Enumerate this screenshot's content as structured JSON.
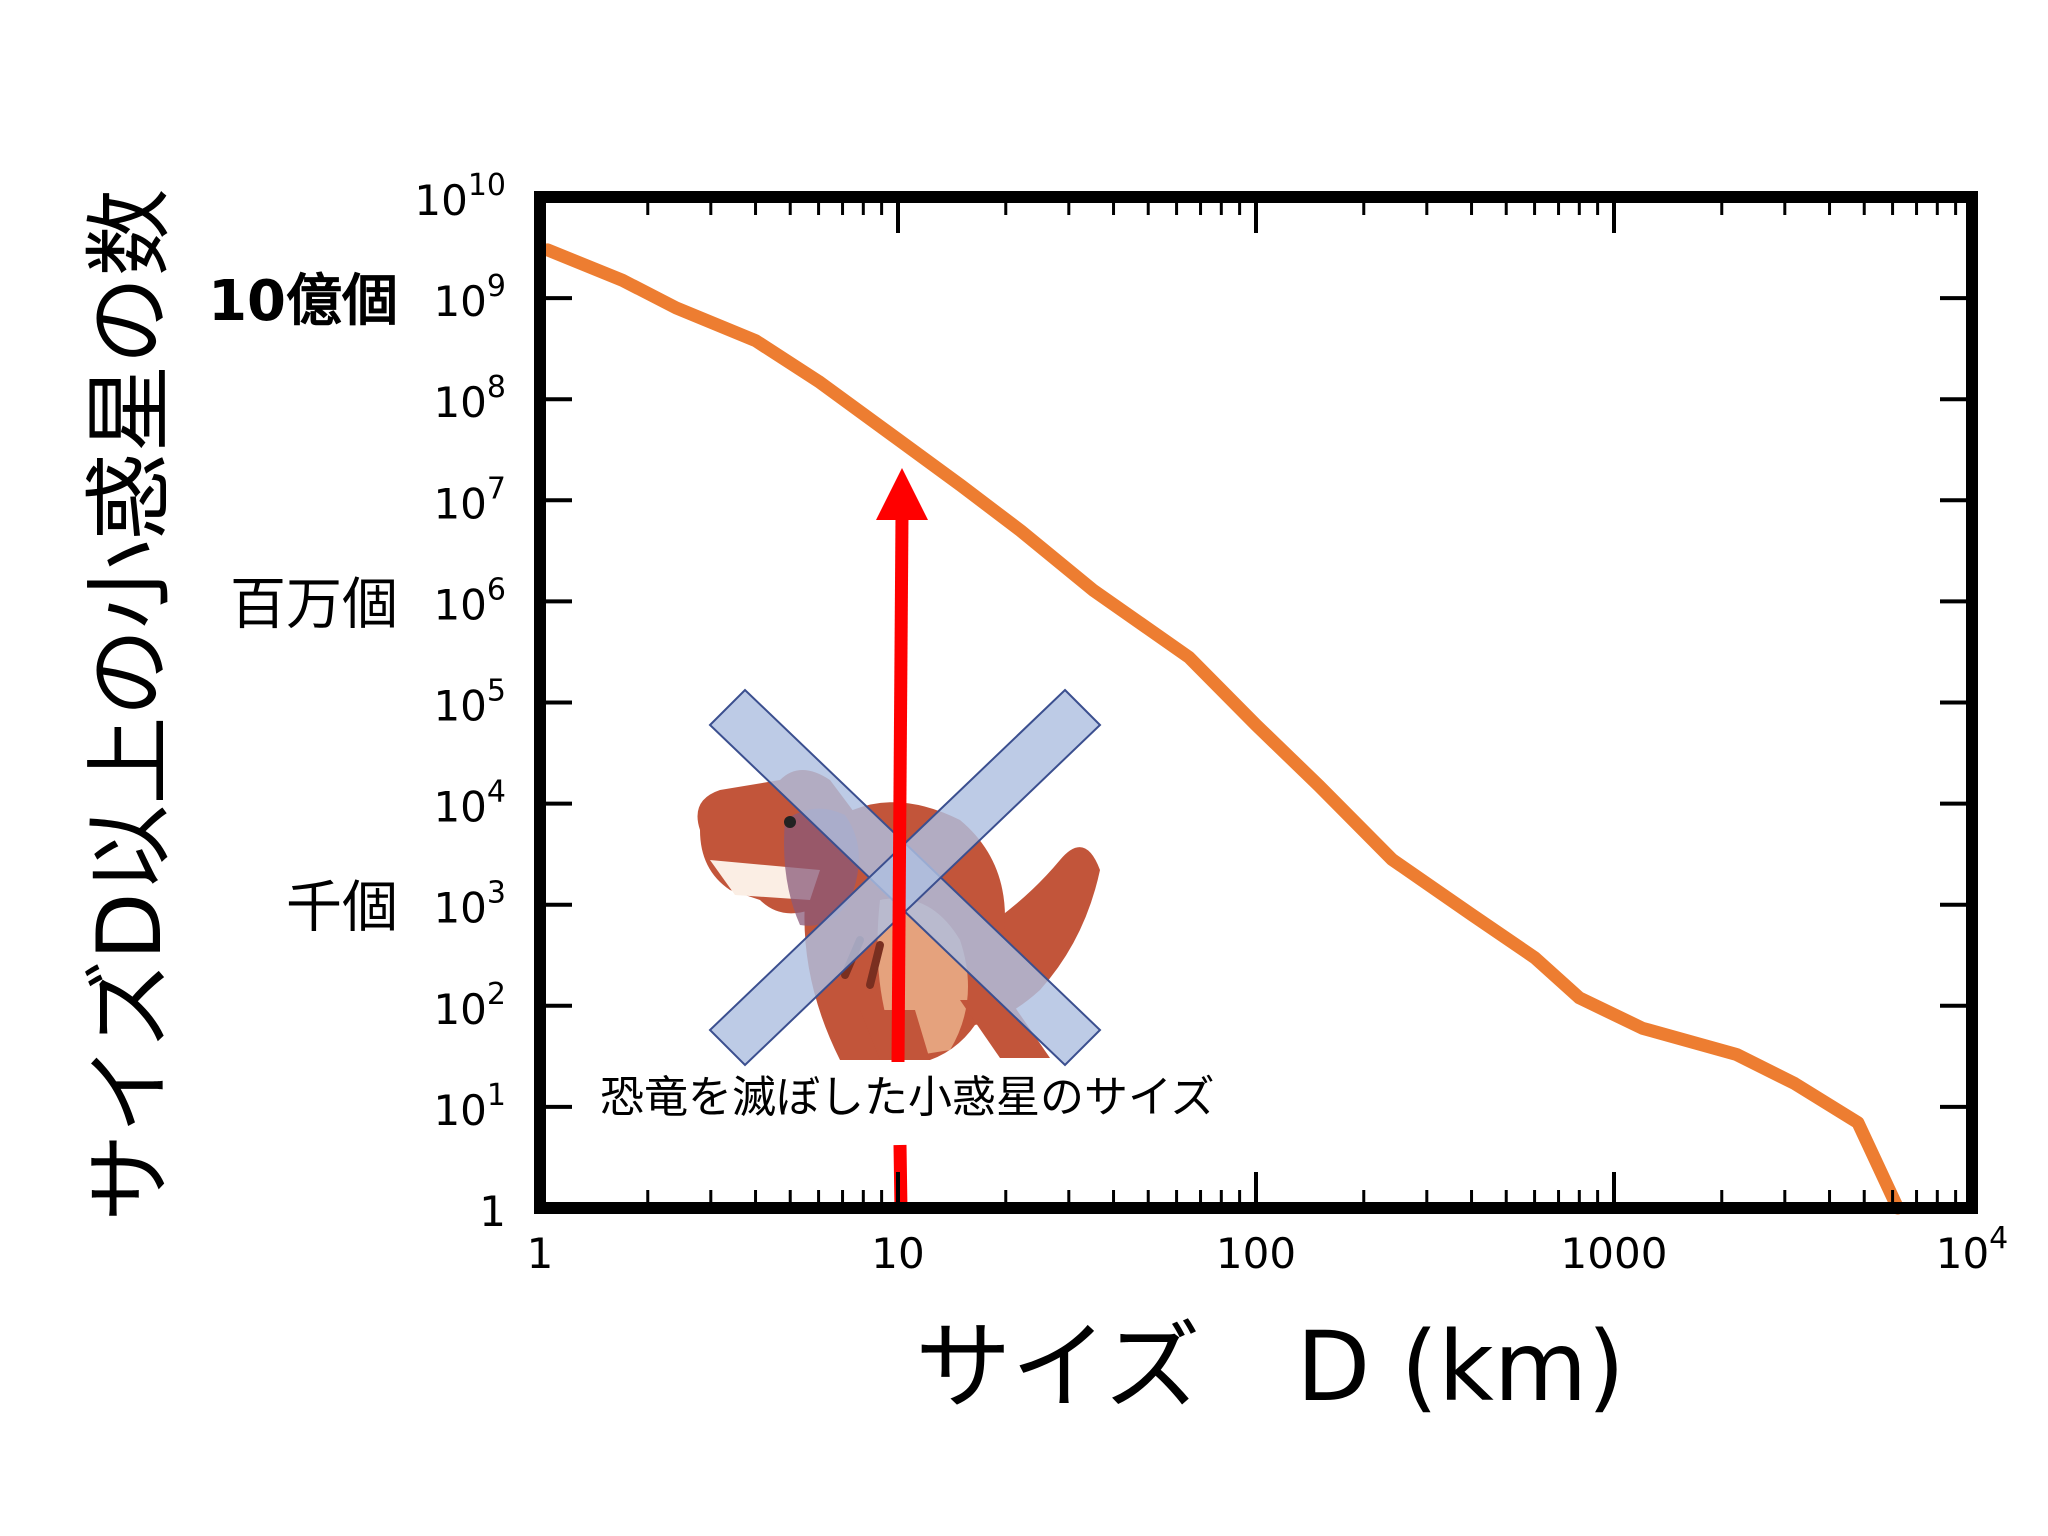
{
  "chart_data": {
    "type": "line",
    "xscale": "log",
    "yscale": "log",
    "xlabel": "サイズ　D (km)",
    "ylabel": "サイズD以上の小惑星の数",
    "xlim": [
      1,
      10000
    ],
    "ylim": [
      1,
      10000000000
    ],
    "x_ticks": [
      {
        "value": 1,
        "label": "1"
      },
      {
        "value": 10,
        "label": "10"
      },
      {
        "value": 100,
        "label": "100"
      },
      {
        "value": 1000,
        "label": "1000"
      },
      {
        "value": 10000,
        "base": "10",
        "exp": "4"
      }
    ],
    "y_ticks": [
      {
        "value": 1,
        "label": "1"
      },
      {
        "value": 10,
        "base": "10",
        "exp": "1"
      },
      {
        "value": 100,
        "base": "10",
        "exp": "2"
      },
      {
        "value": 1000,
        "base": "10",
        "exp": "3"
      },
      {
        "value": 10000,
        "base": "10",
        "exp": "4"
      },
      {
        "value": 100000,
        "base": "10",
        "exp": "5"
      },
      {
        "value": 1000000,
        "base": "10",
        "exp": "6"
      },
      {
        "value": 10000000,
        "base": "10",
        "exp": "7"
      },
      {
        "value": 100000000,
        "base": "10",
        "exp": "8"
      },
      {
        "value": 1000000000,
        "base": "10",
        "exp": "9"
      },
      {
        "value": 10000000000,
        "base": "10",
        "exp": "10"
      }
    ],
    "y_annotations": [
      {
        "value": 1000000000,
        "text": "10億個"
      },
      {
        "value": 1000000,
        "text": "百万個"
      },
      {
        "value": 1000,
        "text": "千個"
      }
    ],
    "series": [
      {
        "color": "#ed7d31",
        "x": [
          1.05,
          1.7,
          2.4,
          4,
          6,
          10,
          15,
          22,
          35,
          65,
          100,
          150,
          240,
          400,
          600,
          800,
          1200,
          2200,
          3200,
          4800,
          6200
        ],
        "y": [
          3000000000,
          1500000000,
          800000000,
          380000000,
          150000000,
          40000000,
          14000000,
          5000000,
          1300000,
          280000,
          60000,
          15000,
          2800,
          800,
          300,
          120,
          60,
          33,
          17,
          7,
          1
        ]
      }
    ],
    "annotation": {
      "text": "恐竜を滅ぼした小惑星のサイズ",
      "x": 10,
      "arrow_color": "#ff0000"
    },
    "icons": {
      "dinosaur": "dinosaur-icon",
      "cross": "cross-mark-icon"
    },
    "colors": {
      "cross": "#aebfe0",
      "cross_edge": "#3b4f8f",
      "dino_body": "#c2553a",
      "dino_belly": "#e5a27d",
      "dino_purple": "#8a5a7a"
    }
  }
}
